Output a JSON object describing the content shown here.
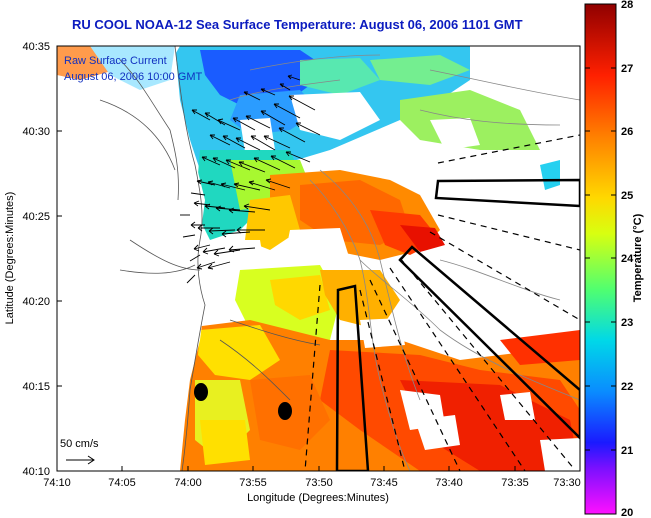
{
  "header": {
    "title": "RU COOL  NOAA-12  Sea Surface Temperature:  August 06, 2006 1101 GMT"
  },
  "map": {
    "xlabel": "Longitude (Degrees:Minutes)",
    "ylabel": "Latitude (Degrees:Minutes)",
    "x_ticks": [
      "74:10",
      "74:05",
      "74:00",
      "73:55",
      "73:50",
      "73:45",
      "73:40",
      "73:35",
      "73:30"
    ],
    "y_ticks": [
      "40:35",
      "40:30",
      "40:25",
      "40:20",
      "40:15",
      "40:10"
    ],
    "current_label_line1": "Raw Surface Current",
    "current_label_line2": "August 06, 2006 10:00 GMT",
    "scale_label": "50 cm/s"
  },
  "colorbar": {
    "label": "Temperature (°C)",
    "ticks": [
      "28",
      "27",
      "26",
      "25",
      "24",
      "23",
      "22",
      "21",
      "20"
    ],
    "min": 20,
    "max": 28,
    "colors": [
      "#ff00ff",
      "#6a00ff",
      "#0000ff",
      "#0096ff",
      "#00e0e0",
      "#40ff80",
      "#c8ff00",
      "#ffe000",
      "#ff8c00",
      "#ff2800",
      "#8c0000"
    ]
  }
}
